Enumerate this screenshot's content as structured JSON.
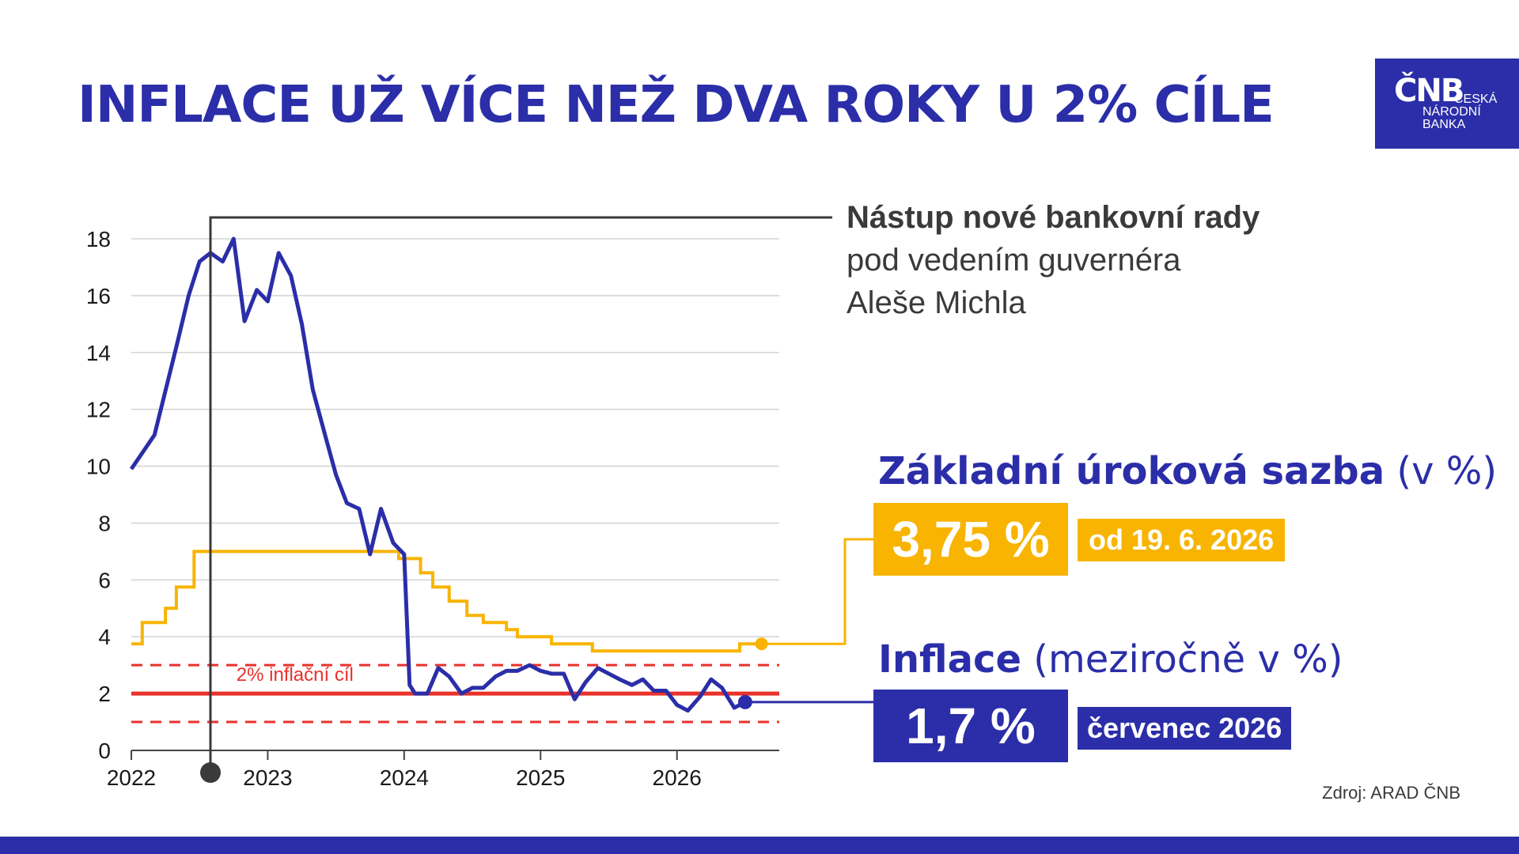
{
  "title": "INFLACE UŽ VÍCE NEŽ DVA ROKY U 2% CÍLE",
  "logo": {
    "mark": "ČNB",
    "line1": "ČESKÁ",
    "line2": "NÁRODNÍ",
    "line3": "BANKA"
  },
  "annotation": {
    "line1": "Nástup nové bankovní rady",
    "line2": "pod vedením guvernéra",
    "line3": "Aleše Michla"
  },
  "rate_panel": {
    "label": "Základní úroková sazba",
    "unit": " (v %)",
    "value": "3,75 %",
    "date": "od 19. 6. 2026"
  },
  "inflation_panel": {
    "label": "Inflace",
    "unit": " (meziročně v %)",
    "value": "1,7 %",
    "date": "červenec 2026"
  },
  "source": "Zdroj: ARAD ČNB",
  "colors": {
    "inflation": "#2b2ea8",
    "rate": "#f8b400",
    "target": "#e8312a",
    "grid": "#d3d3d3"
  },
  "chart_data": {
    "type": "line",
    "ylim": [
      0,
      18
    ],
    "yticks": [
      0,
      2,
      4,
      6,
      8,
      10,
      12,
      14,
      16,
      18
    ],
    "xlim": [
      2022,
      2026.75
    ],
    "xticks": [
      "2022",
      "2023",
      "2024",
      "2025",
      "2026"
    ],
    "target_label": "2% inflační cíl",
    "target": 2,
    "tolerance_band": [
      1,
      3
    ],
    "event_x": 2022.58,
    "inflation": {
      "x": [
        2022.0,
        2022.17,
        2022.33,
        2022.42,
        2022.5,
        2022.58,
        2022.67,
        2022.75,
        2022.83,
        2022.92,
        2023.0,
        2023.08,
        2023.17,
        2023.25,
        2023.33,
        2023.42,
        2023.5,
        2023.58,
        2023.67,
        2023.75,
        2023.83,
        2023.92,
        2024.0,
        2024.04,
        2024.08,
        2024.17,
        2024.25,
        2024.33,
        2024.42,
        2024.5,
        2024.58,
        2024.67,
        2024.75,
        2024.83,
        2024.92,
        2025.0,
        2025.08,
        2025.17,
        2025.25,
        2025.33,
        2025.42,
        2025.5,
        2025.58,
        2025.67,
        2025.75,
        2025.83,
        2025.92,
        2026.0,
        2026.08,
        2026.17,
        2026.25,
        2026.33,
        2026.42,
        2026.5
      ],
      "values": [
        9.9,
        11.1,
        14.2,
        16.0,
        17.2,
        17.5,
        17.2,
        18.0,
        15.1,
        16.2,
        15.8,
        17.5,
        16.7,
        15.0,
        12.7,
        11.1,
        9.7,
        8.7,
        8.5,
        6.9,
        8.5,
        7.3,
        6.9,
        2.3,
        2.0,
        2.0,
        2.9,
        2.6,
        2.0,
        2.2,
        2.2,
        2.6,
        2.8,
        2.8,
        3.0,
        2.8,
        2.7,
        2.7,
        1.8,
        2.4,
        2.9,
        2.7,
        2.5,
        2.3,
        2.5,
        2.1,
        2.1,
        1.6,
        1.4,
        1.9,
        2.5,
        2.2,
        1.5,
        1.7
      ]
    },
    "rate": {
      "steps": [
        [
          2022.0,
          3.75
        ],
        [
          2022.08,
          4.5
        ],
        [
          2022.25,
          5.0
        ],
        [
          2022.33,
          5.75
        ],
        [
          2022.46,
          7.0
        ],
        [
          2023.96,
          6.75
        ],
        [
          2024.12,
          6.25
        ],
        [
          2024.21,
          5.75
        ],
        [
          2024.33,
          5.25
        ],
        [
          2024.46,
          4.75
        ],
        [
          2024.58,
          4.5
        ],
        [
          2024.75,
          4.25
        ],
        [
          2024.83,
          4.0
        ],
        [
          2025.08,
          3.75
        ],
        [
          2025.38,
          3.5
        ],
        [
          2026.46,
          3.75
        ],
        [
          2026.62,
          3.75
        ]
      ]
    }
  }
}
